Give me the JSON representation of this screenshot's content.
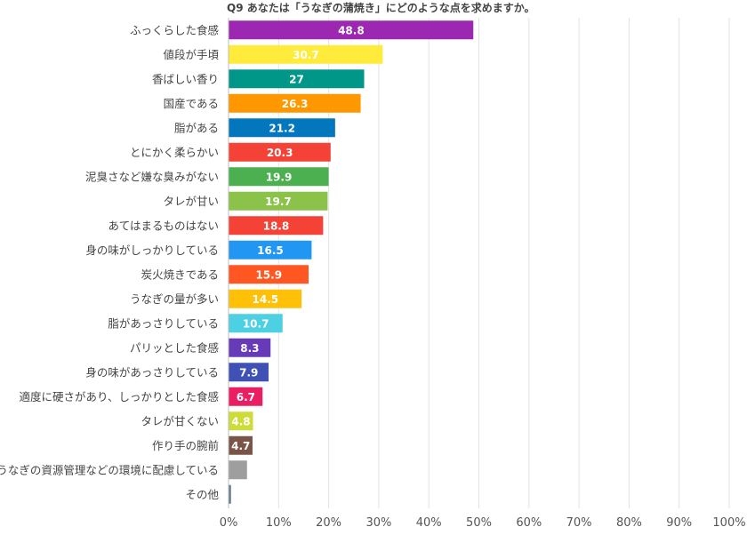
{
  "chart_data": {
    "type": "bar",
    "orientation": "horizontal",
    "title": "Q9 あなたは「うなぎの蒲焼き」にどのような点を求めますか。",
    "xlabel": "",
    "ylabel": "",
    "xlim": [
      0,
      100
    ],
    "x_ticks": [
      "0%",
      "10%",
      "20%",
      "30%",
      "40%",
      "50%",
      "60%",
      "70%",
      "80%",
      "90%",
      "100%"
    ],
    "grid": true,
    "legend": "none",
    "categories": [
      "ふっくらした食感",
      "値段が手頃",
      "香ばしい香り",
      "国産である",
      "脂がある",
      "とにかく柔らかい",
      "泥臭さなど嫌な臭みがない",
      "タレが甘い",
      "あてはまるものはない",
      "身の味がしっかりしている",
      "炭火焼きである",
      "うなぎの量が多い",
      "脂があっさりしている",
      "パリッとした食感",
      "身の味があっさりしている",
      "適度に硬さがあり、しっかりとした食感",
      "タレが甘くない",
      "作り手の腕前",
      "うなぎの資源管理などの環境に配慮している",
      "その他"
    ],
    "values": [
      48.8,
      30.7,
      27,
      26.3,
      21.2,
      20.3,
      19.9,
      19.7,
      18.8,
      16.5,
      15.9,
      14.5,
      10.7,
      8.3,
      7.9,
      6.7,
      4.8,
      4.7,
      null,
      null
    ],
    "raw_values": [
      48.8,
      30.7,
      27,
      26.3,
      21.2,
      20.3,
      19.9,
      19.7,
      18.8,
      16.5,
      15.9,
      14.5,
      10.7,
      8.3,
      7.9,
      6.7,
      4.8,
      4.7,
      3.6,
      0.4
    ],
    "data_labels": [
      "48.8",
      "30.7",
      "27",
      "26.3",
      "21.2",
      "20.3",
      "19.9",
      "19.7",
      "18.8",
      "16.5",
      "15.9",
      "14.5",
      "10.7",
      "8.3",
      "7.9",
      "6.7",
      "4.8",
      "4.7",
      "",
      ""
    ],
    "colors": [
      "#9c27b0",
      "#ffeb3b",
      "#009688",
      "#ff9800",
      "#0277bd",
      "#f44336",
      "#4caf50",
      "#8bc34a",
      "#f44336",
      "#2196f3",
      "#ff5722",
      "#ffc107",
      "#4dd0e1",
      "#673ab7",
      "#3f51b5",
      "#e91e63",
      "#cddc39",
      "#795548",
      "#9e9e9e",
      "#607d8b"
    ]
  }
}
